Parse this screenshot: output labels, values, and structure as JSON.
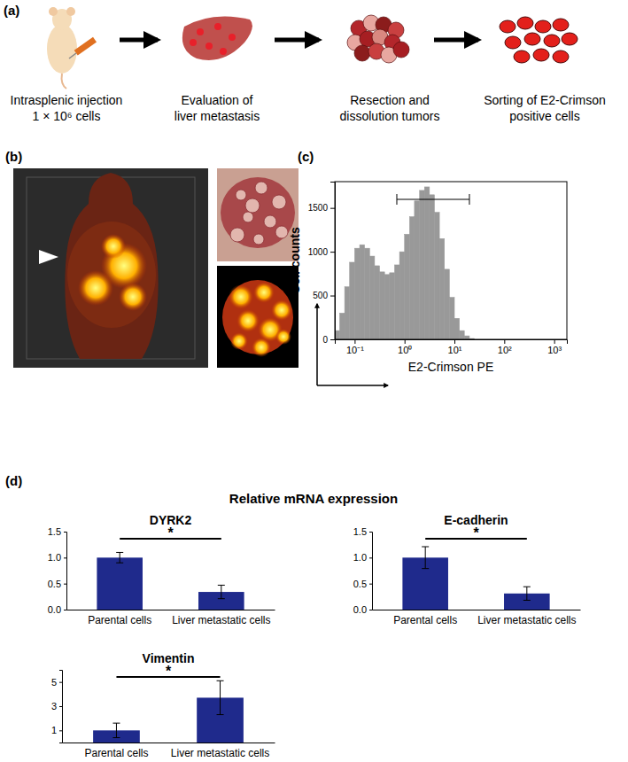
{
  "panel_labels": [
    "(a)",
    "(b)",
    "(c)",
    "(d)"
  ],
  "schematic": {
    "steps": [
      [
        "Intrasplenic injection",
        "1 × 10⁶ cells"
      ],
      [
        "Evaluation of",
        "liver metastasis"
      ],
      [
        "Resection and",
        "dissolution tumors"
      ],
      [
        "Sorting of E2-Crimson",
        "positive cells"
      ]
    ]
  },
  "panel_d_title": "Relative mRNA expression",
  "chart_data": [
    {
      "type": "histogram",
      "x_label": "E2-Crimson PE",
      "y_label": "Cell counts",
      "log": "x",
      "bins": [
        0.04,
        0.05,
        0.063,
        0.079,
        0.1,
        0.126,
        0.158,
        0.2,
        0.251,
        0.316,
        0.398,
        0.501,
        0.631,
        0.794,
        1,
        1.26,
        1.58,
        2,
        2.51,
        3.16,
        3.98,
        5.01,
        6.31,
        7.94,
        10,
        12.6,
        15.8,
        20,
        25.1,
        31.6,
        39.8
      ],
      "values": [
        100,
        300,
        600,
        880,
        1040,
        1080,
        1040,
        950,
        840,
        770,
        740,
        760,
        850,
        1000,
        1200,
        1400,
        1580,
        1700,
        1740,
        1650,
        1450,
        1150,
        800,
        480,
        240,
        100,
        40,
        10,
        0,
        0
      ],
      "color": "#999999",
      "xlim": [
        0.04,
        1800
      ],
      "xticks": [
        {
          "value": 0.1,
          "label": "10⁻¹"
        },
        {
          "value": 1,
          "label": "10⁰"
        },
        {
          "value": 10,
          "label": "10¹"
        },
        {
          "value": 100,
          "label": "10²"
        },
        {
          "value": 1000,
          "label": "10³"
        }
      ],
      "ylim": [
        0,
        1800
      ],
      "yticks": [
        0,
        500,
        1000,
        1500
      ],
      "gate": [
        0.7,
        20
      ]
    },
    {
      "type": "bar",
      "title": "DYRK2",
      "categories": [
        "Parental cells",
        "Liver metastatic cells"
      ],
      "values": [
        1.0,
        0.34
      ],
      "errors": [
        0.1,
        0.13
      ],
      "color": "#1f2a8c",
      "ylim": [
        0,
        1.5
      ],
      "yticks": [
        {
          "value": 0,
          "label": "0.0"
        },
        0.5,
        {
          "value": 1,
          "label": "1.0"
        },
        1.5
      ],
      "annotation": "*"
    },
    {
      "type": "bar",
      "title": "E-cadherin",
      "categories": [
        "Parental cells",
        "Liver metastatic cells"
      ],
      "values": [
        1.0,
        0.31
      ],
      "errors": [
        0.21,
        0.13
      ],
      "color": "#1f2a8c",
      "ylim": [
        0,
        1.5
      ],
      "yticks": [
        {
          "value": 0,
          "label": "0.0"
        },
        0.5,
        {
          "value": 1,
          "label": "1.0"
        },
        1.5
      ],
      "annotation": "*"
    },
    {
      "type": "bar",
      "title": "Vimentin",
      "categories": [
        "Parental cells",
        "Liver metastatic cells"
      ],
      "values": [
        1.0,
        3.7
      ],
      "errors": [
        0.6,
        1.4
      ],
      "color": "#1f2a8c",
      "ylim": [
        0,
        6
      ],
      "yticks": [
        1,
        3,
        5
      ],
      "annotation": "*"
    }
  ]
}
